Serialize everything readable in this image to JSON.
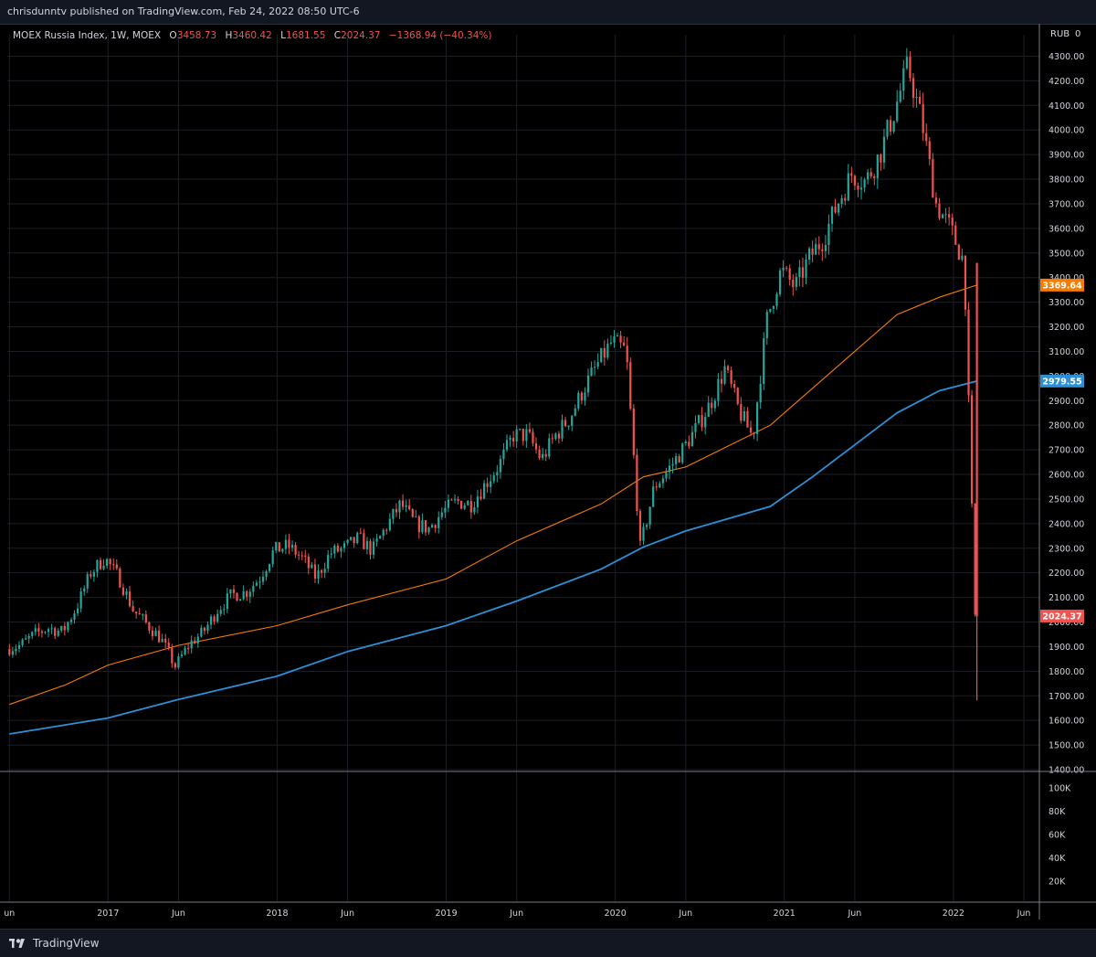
{
  "header": {
    "published": "chrisdunntv published on TradingView.com, Feb 24, 2022 08:50 UTC-6"
  },
  "footer": {
    "brand": "TradingView"
  },
  "legend": {
    "symbol": "MOEX Russia Index, 1W, MOEX",
    "o_label": "O",
    "o_value": "3458.73",
    "h_label": "H",
    "h_value": "3460.42",
    "l_label": "L",
    "l_value": "1681.55",
    "c_label": "C",
    "c_value": "2024.37",
    "change": "−1368.94 (−40.34%)"
  },
  "price_scale": {
    "currency": "RUB",
    "volume_zero": "0"
  },
  "colors": {
    "up": "#26a69a",
    "down": "#ef5350",
    "ma_fast": "#f57c00",
    "ma_slow": "#2d8fd5",
    "grid": "#1c1f26",
    "text": "#d1d4dc",
    "background": "#000000",
    "panel": "#131722"
  },
  "chart_data": {
    "type": "candlestick",
    "x_range": [
      "2016-06",
      "2022-06"
    ],
    "ylim": [
      1400,
      4350
    ],
    "y_ticks": [
      1400,
      1500,
      1600,
      1700,
      1800,
      1900,
      2000,
      2100,
      2200,
      2300,
      2400,
      2500,
      2600,
      2700,
      2800,
      2900,
      3000,
      3100,
      3200,
      3300,
      3400,
      3500,
      3600,
      3700,
      3800,
      3900,
      4000,
      4100,
      4200,
      4300
    ],
    "x_ticks": [
      {
        "label": "un",
        "date": "2016-06"
      },
      {
        "label": "2017",
        "date": "2017-01"
      },
      {
        "label": "Jun",
        "date": "2017-06"
      },
      {
        "label": "2018",
        "date": "2018-01"
      },
      {
        "label": "Jun",
        "date": "2018-06"
      },
      {
        "label": "2019",
        "date": "2019-01"
      },
      {
        "label": "Jun",
        "date": "2019-06"
      },
      {
        "label": "2020",
        "date": "2020-01"
      },
      {
        "label": "Jun",
        "date": "2020-06"
      },
      {
        "label": "2021",
        "date": "2021-01"
      },
      {
        "label": "Jun",
        "date": "2021-06"
      },
      {
        "label": "2022",
        "date": "2022-01"
      },
      {
        "label": "Jun",
        "date": "2022-06"
      }
    ],
    "price_path": [
      [
        "2016-06",
        1890
      ],
      [
        "2016-07",
        1905
      ],
      [
        "2016-08",
        1950
      ],
      [
        "2016-09",
        1975
      ],
      [
        "2016-10",
        1960
      ],
      [
        "2016-11",
        2060
      ],
      [
        "2016-12",
        2200
      ],
      [
        "2017-01",
        2260
      ],
      [
        "2017-02",
        2180
      ],
      [
        "2017-03",
        2050
      ],
      [
        "2017-04",
        1990
      ],
      [
        "2017-05",
        1930
      ],
      [
        "2017-06",
        1820
      ],
      [
        "2017-07",
        1910
      ],
      [
        "2017-08",
        1960
      ],
      [
        "2017-09",
        2050
      ],
      [
        "2017-10",
        2110
      ],
      [
        "2017-11",
        2120
      ],
      [
        "2017-12",
        2180
      ],
      [
        "2018-01",
        2290
      ],
      [
        "2018-02",
        2310
      ],
      [
        "2018-03",
        2260
      ],
      [
        "2018-04",
        2180
      ],
      [
        "2018-05",
        2280
      ],
      [
        "2018-06",
        2300
      ],
      [
        "2018-07",
        2340
      ],
      [
        "2018-08",
        2290
      ],
      [
        "2018-09",
        2390
      ],
      [
        "2018-10",
        2480
      ],
      [
        "2018-11",
        2400
      ],
      [
        "2018-12",
        2380
      ],
      [
        "2019-01",
        2450
      ],
      [
        "2019-02",
        2490
      ],
      [
        "2019-03",
        2480
      ],
      [
        "2019-04",
        2560
      ],
      [
        "2019-05",
        2640
      ],
      [
        "2019-06",
        2760
      ],
      [
        "2019-07",
        2760
      ],
      [
        "2019-08",
        2660
      ],
      [
        "2019-09",
        2760
      ],
      [
        "2019-10",
        2830
      ],
      [
        "2019-11",
        2950
      ],
      [
        "2019-12",
        3050
      ],
      [
        "2020-01",
        3140
      ],
      [
        "2020-02",
        3100
      ],
      [
        "2020-03",
        2300
      ],
      [
        "2020-04",
        2550
      ],
      [
        "2020-05",
        2620
      ],
      [
        "2020-06",
        2700
      ],
      [
        "2020-07",
        2790
      ],
      [
        "2020-08",
        2890
      ],
      [
        "2020-09",
        3030
      ],
      [
        "2020-10",
        2860
      ],
      [
        "2020-11",
        2750
      ],
      [
        "2020-12",
        3230
      ],
      [
        "2021-01",
        3430
      ],
      [
        "2021-02",
        3360
      ],
      [
        "2021-03",
        3480
      ],
      [
        "2021-04",
        3560
      ],
      [
        "2021-05",
        3700
      ],
      [
        "2021-06",
        3820
      ],
      [
        "2021-07",
        3790
      ],
      [
        "2021-08",
        3900
      ],
      [
        "2021-09",
        4070
      ],
      [
        "2021-10",
        4260
      ],
      [
        "2021-11",
        4030
      ],
      [
        "2021-12",
        3700
      ],
      [
        "2022-01",
        3600
      ],
      [
        "2022-02",
        3460
      ],
      [
        "2022-02-24",
        2024
      ]
    ],
    "last_candle": {
      "date": "2022-02-21",
      "open": 3458.73,
      "high": 3460.42,
      "low": 1681.55,
      "close": 2024.37
    },
    "ma_fast": [
      [
        "2016-06",
        1665
      ],
      [
        "2016-10",
        1745
      ],
      [
        "2017-01",
        1825
      ],
      [
        "2017-06",
        1905
      ],
      [
        "2018-01",
        1985
      ],
      [
        "2018-06",
        2070
      ],
      [
        "2019-01",
        2175
      ],
      [
        "2019-06",
        2330
      ],
      [
        "2019-12",
        2480
      ],
      [
        "2020-03",
        2590
      ],
      [
        "2020-06",
        2630
      ],
      [
        "2020-12",
        2800
      ],
      [
        "2021-03",
        2950
      ],
      [
        "2021-06",
        3100
      ],
      [
        "2021-09",
        3250
      ],
      [
        "2021-12",
        3320
      ],
      [
        "2022-02-21",
        3369.64
      ]
    ],
    "ma_slow": [
      [
        "2016-06",
        1545
      ],
      [
        "2017-01",
        1610
      ],
      [
        "2017-06",
        1685
      ],
      [
        "2018-01",
        1780
      ],
      [
        "2018-06",
        1880
      ],
      [
        "2019-01",
        1985
      ],
      [
        "2019-06",
        2085
      ],
      [
        "2019-12",
        2215
      ],
      [
        "2020-03",
        2305
      ],
      [
        "2020-06",
        2370
      ],
      [
        "2020-12",
        2470
      ],
      [
        "2021-03",
        2590
      ],
      [
        "2021-06",
        2720
      ],
      [
        "2021-09",
        2850
      ],
      [
        "2021-12",
        2940
      ],
      [
        "2022-02-21",
        2979.55
      ]
    ],
    "price_labels": [
      {
        "value": 3369.64,
        "text": "3369.64",
        "color": "#f57c00"
      },
      {
        "value": 2979.55,
        "text": "2979.55",
        "color": "#2d8fd5"
      },
      {
        "value": 2024.37,
        "text": "2024.37",
        "color": "#ef5350"
      }
    ],
    "volume_ticks": [
      "100K",
      "80K",
      "60K",
      "40K",
      "20K"
    ]
  }
}
